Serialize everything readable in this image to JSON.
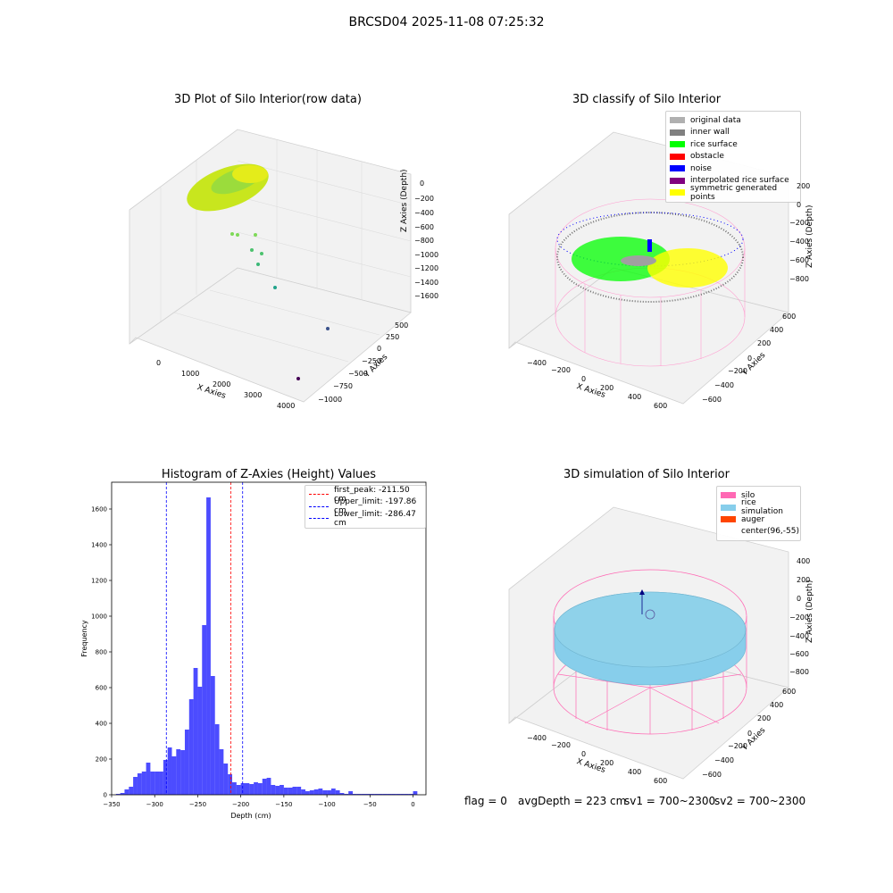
{
  "title": "BRCSD04 2025-11-08 07:25:32",
  "panels": {
    "raw": {
      "title": "3D Plot of Silo Interior(row data)",
      "xlabel": "X Axies",
      "ylabel": "Y Axies",
      "zlabel": "Z Axies (Depth)",
      "xticks": [
        "0",
        "1000",
        "2000",
        "3000",
        "4000"
      ],
      "yticks": [
        "500",
        "250",
        "0",
        "−250",
        "−500",
        "−750",
        "−1000"
      ],
      "zticks": [
        "0",
        "−200",
        "−400",
        "−600",
        "−800",
        "−1000",
        "−1200",
        "−1400",
        "−1600"
      ]
    },
    "classify": {
      "title": "3D classify of Silo Interior",
      "xlabel": "X Axies",
      "ylabel": "Y Axies",
      "zlabel": "Z Axies (Depth)",
      "xticks": [
        "−400",
        "−200",
        "0",
        "200",
        "400",
        "600"
      ],
      "yticks": [
        "600",
        "400",
        "200",
        "0",
        "−200",
        "−400",
        "−600"
      ],
      "zticks": [
        "200",
        "0",
        "−200",
        "−400",
        "−600",
        "−800"
      ],
      "legend": [
        {
          "label": "original data",
          "color": "#b0b0b0"
        },
        {
          "label": "inner wall",
          "color": "#808080"
        },
        {
          "label": "rice surface",
          "color": "#00ff00"
        },
        {
          "label": "obstacle",
          "color": "#ff0000"
        },
        {
          "label": "noise",
          "color": "#0000ff"
        },
        {
          "label": "interpolated rice surface",
          "color": "#800080"
        },
        {
          "label": "symmetric generated points",
          "color": "#ffff00"
        }
      ]
    },
    "simulation": {
      "title": "3D simulation of Silo Interior",
      "xlabel": "X Axies",
      "ylabel": "Y Axies",
      "zlabel": "Z Axies (Depth)",
      "xticks": [
        "−400",
        "−200",
        "0",
        "200",
        "400",
        "600"
      ],
      "yticks": [
        "600",
        "400",
        "200",
        "0",
        "−200",
        "−400",
        "−600"
      ],
      "zticks": [
        "400",
        "200",
        "0",
        "−200",
        "−400",
        "−600",
        "−800"
      ],
      "legend": [
        {
          "label": "silo",
          "color": "#ff69b4"
        },
        {
          "label": "rice simulation",
          "color": "#87ceeb"
        },
        {
          "label": "auger",
          "color": "#ff4500"
        },
        {
          "label": "center(96,-55)",
          "color": "#ffffff"
        }
      ]
    }
  },
  "footer": {
    "flag": "flag = 0",
    "avg": "avgDepth = 223 cm",
    "sv1": "sv1 = 700~2300",
    "sv2": "sv2 = 700~2300"
  },
  "chart_data": {
    "type": "bar",
    "title": "Histogram of Z-Axies (Height) Values",
    "xlabel": "Depth (cm)",
    "ylabel": "Frequency",
    "xlim": [
      -350,
      15
    ],
    "ylim": [
      0,
      1750
    ],
    "xticks": [
      -350,
      -300,
      -250,
      -200,
      -150,
      -100,
      -50,
      0
    ],
    "yticks": [
      0,
      200,
      400,
      600,
      800,
      1000,
      1200,
      1400,
      1600
    ],
    "bar_color": "#0000ff",
    "bin_width": 5,
    "bin_starts": [
      -345,
      -340,
      -335,
      -330,
      -325,
      -320,
      -315,
      -310,
      -305,
      -300,
      -295,
      -290,
      -285,
      -280,
      -275,
      -270,
      -265,
      -260,
      -255,
      -250,
      -245,
      -240,
      -235,
      -230,
      -225,
      -220,
      -215,
      -210,
      -205,
      -200,
      -195,
      -190,
      -185,
      -180,
      -175,
      -170,
      -165,
      -160,
      -155,
      -150,
      -145,
      -140,
      -135,
      -130,
      -125,
      -120,
      -115,
      -110,
      -105,
      -100,
      -95,
      -90,
      -85,
      -80,
      -75,
      -70,
      -65,
      -60,
      -55,
      -50,
      -45,
      -40,
      -35,
      -30,
      -25,
      -20,
      -15,
      -10,
      -5,
      0
    ],
    "values": [
      5,
      10,
      30,
      45,
      100,
      120,
      130,
      180,
      130,
      130,
      130,
      195,
      265,
      215,
      255,
      250,
      365,
      535,
      710,
      605,
      950,
      1665,
      665,
      395,
      255,
      175,
      115,
      70,
      55,
      65,
      65,
      60,
      70,
      65,
      90,
      95,
      55,
      50,
      55,
      40,
      40,
      45,
      45,
      30,
      20,
      25,
      30,
      35,
      25,
      25,
      35,
      25,
      10,
      5,
      20,
      5,
      5,
      5,
      5,
      5,
      5,
      5,
      5,
      5,
      5,
      5,
      5,
      5,
      5,
      20
    ],
    "lines": [
      {
        "label": "first_peak: -211.50 cm",
        "x": -211.5,
        "color": "#ff0000"
      },
      {
        "label": "Upper_limit: -197.86 cm",
        "x": -197.86,
        "color": "#0000ff"
      },
      {
        "label": "Lower_limit: -286.47 cm",
        "x": -286.47,
        "color": "#0000ff"
      }
    ]
  }
}
